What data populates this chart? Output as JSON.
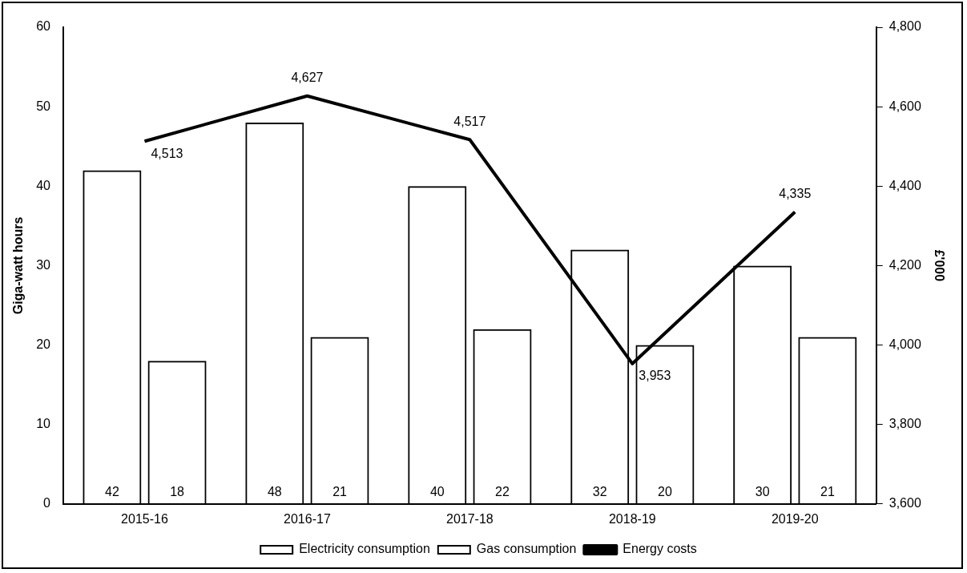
{
  "chart_data": {
    "type": "bar",
    "categories": [
      "2015-16",
      "2016-17",
      "2017-18",
      "2018-19",
      "2019-20"
    ],
    "ylabel": "Giga-watt hours",
    "y2label": "£'000",
    "series": [
      {
        "name": "Electricity consumption",
        "color": "#000000",
        "values": [
          42,
          48,
          40,
          32,
          30
        ]
      },
      {
        "name": "Gas consumption",
        "color": "#000000",
        "values": [
          18,
          21,
          22,
          20,
          21
        ]
      },
      {
        "name": "Energy costs",
        "type": "line",
        "axis": "y2",
        "color": "#000000",
        "values": [
          4513,
          4627,
          4517,
          3953,
          4335
        ],
        "value_labels": [
          "4,513",
          "4,627",
          "4,517",
          "3,953",
          "4,335"
        ]
      }
    ],
    "ylim": [
      0,
      60
    ],
    "yticks": [
      0,
      10,
      20,
      30,
      40,
      50,
      60
    ],
    "y2lim": [
      3600,
      4800
    ],
    "y2ticks": [
      {
        "value": 3600,
        "label": "3,600"
      },
      {
        "value": 3800,
        "label": "3,800"
      },
      {
        "value": 4000,
        "label": "4,000"
      },
      {
        "value": 4200,
        "label": "4,200"
      },
      {
        "value": 4400,
        "label": "4,400"
      },
      {
        "value": 4600,
        "label": "4,600"
      },
      {
        "value": 4800,
        "label": "4,800"
      }
    ],
    "data_labels": true,
    "grid": false,
    "legend": "bottom",
    "marker": "none",
    "line_style": "solid"
  }
}
